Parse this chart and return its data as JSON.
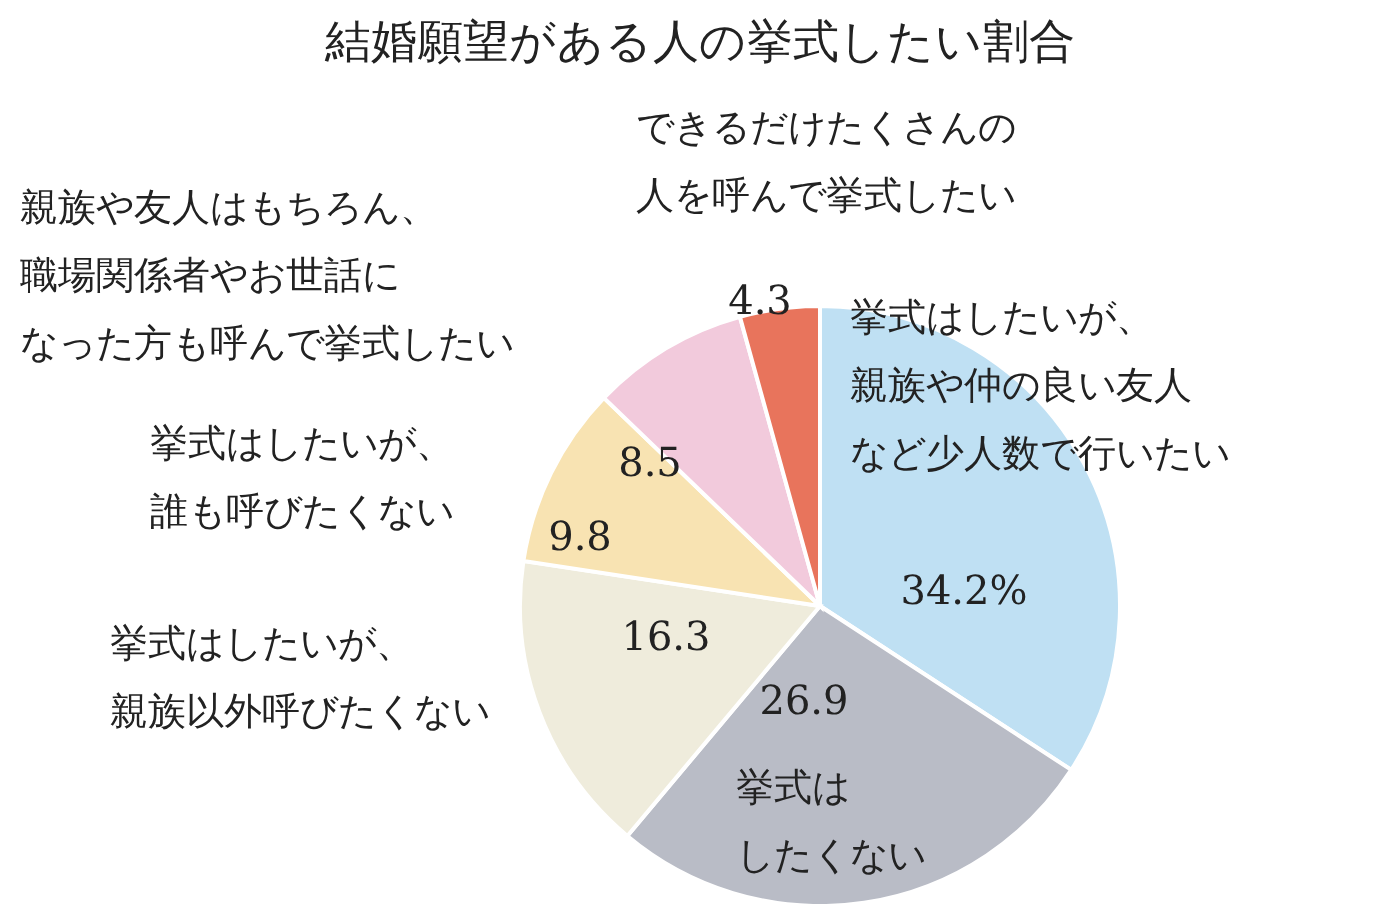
{
  "chart_data": {
    "type": "pie",
    "title": "結婚願望がある人の挙式したい割合",
    "categories": [
      "挙式はしたいが、親族や仲の良い友人など少人数で行いたい",
      "挙式はしたくない",
      "挙式はしたいが、親族以外呼びたくない",
      "挙式はしたいが、誰も呼びたくない",
      "親族や友人はもちろん、職場関係者やお世話になった方も呼んで挙式したい",
      "できるだけたくさんの人を呼んで挙式したい"
    ],
    "values": [
      34.2,
      26.9,
      16.3,
      9.8,
      8.5,
      4.3
    ],
    "value_labels": [
      "34.2%",
      "26.9",
      "16.3",
      "9.8",
      "8.5",
      "4.3"
    ],
    "colors": [
      "#bfe0f3",
      "#b9bcc6",
      "#efecdc",
      "#f8e3b2",
      "#f2cadc",
      "#e8745c"
    ]
  }
}
